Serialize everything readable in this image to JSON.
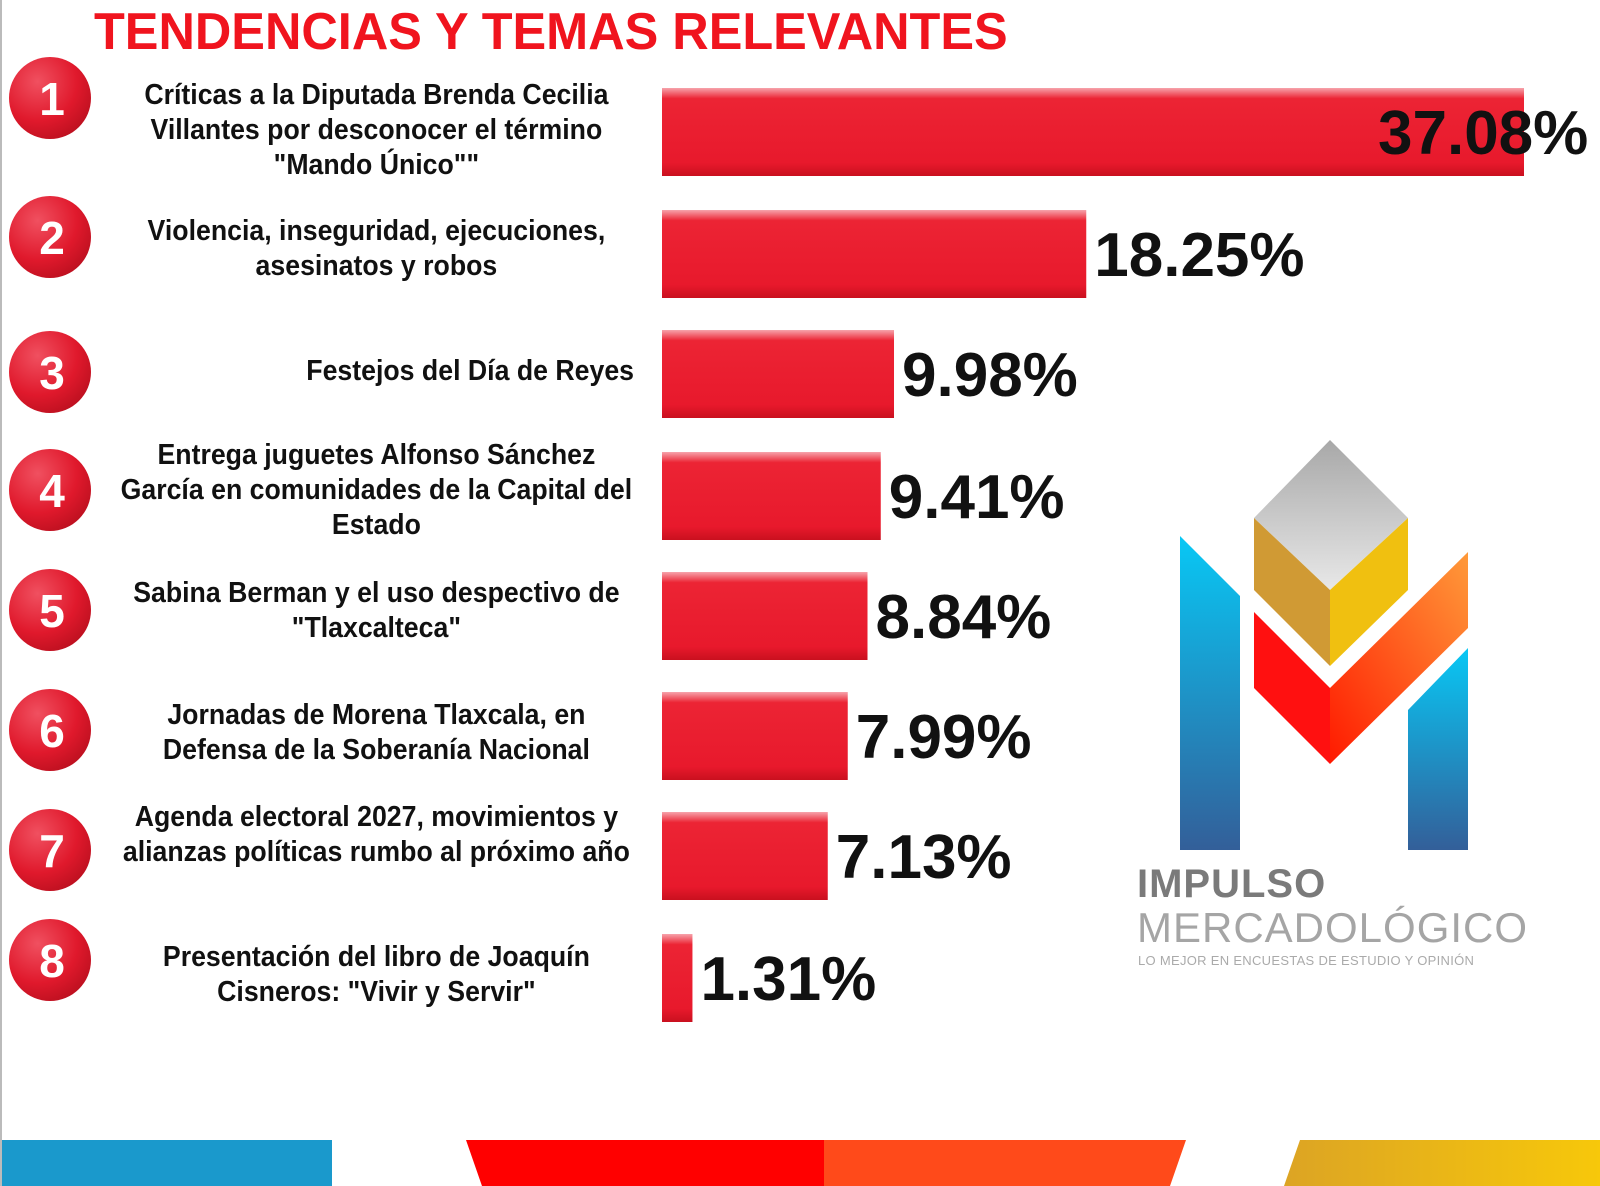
{
  "chart_data": {
    "type": "bar",
    "orientation": "horizontal",
    "title": "TENDENCIAS Y TEMAS RELEVANTES",
    "ranks": [
      "1",
      "2",
      "3",
      "4",
      "5",
      "6",
      "7",
      "8"
    ],
    "categories": [
      "Críticas a la Diputada  Brenda Cecilia Villantes por desconocer el término \"Mando Único\"\"",
      "Violencia, inseguridad, ejecuciones, asesinatos  y robos",
      "Festejos del Día de Reyes",
      "Entrega  juguetes  Alfonso Sánchez García en comunidades de la Capital del Estado",
      "Sabina Berman y el uso despectivo de \"Tlaxcalteca\"",
      "Jornadas de Morena Tlaxcala, en Defensa de la Soberanía Nacional",
      "Agenda electoral 2027,  movimientos y alianzas políticas rumbo al próximo año",
      "Presentación del libro de Joaquín Cisneros: \"Vivir y Servir\""
    ],
    "values": [
      37.08,
      18.25,
      9.98,
      9.41,
      8.84,
      7.99,
      7.13,
      1.31
    ],
    "value_labels": [
      "37.08%",
      "18.25%",
      "9.98%",
      "9.41%",
      "8.84%",
      "7.99%",
      "7.13%",
      "1.31%"
    ],
    "xlim": [
      0,
      37.08
    ],
    "grid": false,
    "bar_color": "#e8192c",
    "rank_circle_color": "#e0192c"
  },
  "logo": {
    "line1": "IMPULSO",
    "line2": "MERCADOLÓGICO",
    "tagline": "LO MEJOR EN ENCUESTAS DE ESTUDIO Y OPINIÓN"
  },
  "footer_colors": [
    "#1a99cc",
    "#ff0000",
    "#ff4a1a",
    "#f5c20a"
  ]
}
